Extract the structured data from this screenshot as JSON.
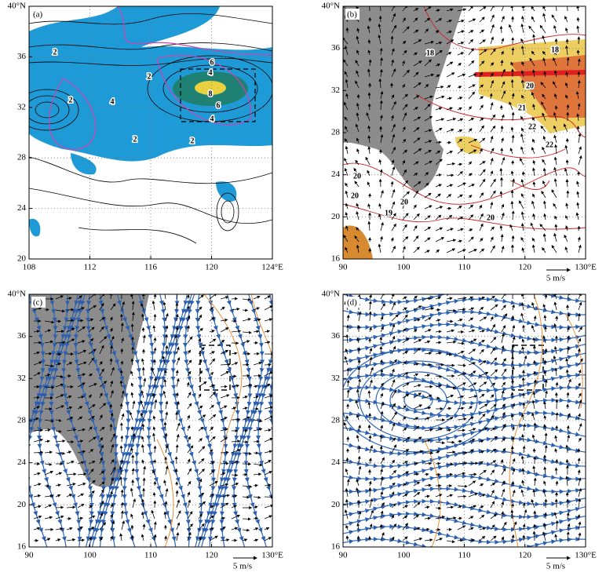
{
  "panels": [
    {
      "label": "(a)",
      "yticks": [
        "40°N",
        "36",
        "32",
        "28",
        "24",
        "20"
      ],
      "xticks": [
        "108",
        "112",
        "116",
        "120",
        "124°E"
      ],
      "contour_labels": [
        "2",
        "2",
        "4",
        "6",
        "8",
        "6",
        "4",
        "2",
        "2",
        "4",
        "2"
      ]
    },
    {
      "label": "(b)",
      "yticks": [
        "40°N",
        "36",
        "32",
        "28",
        "24",
        "20",
        "16"
      ],
      "xticks": [
        "90",
        "100",
        "110",
        "120",
        "130°E"
      ],
      "contour_labels": [
        "20",
        "21",
        "22",
        "18",
        "20",
        "20",
        "19",
        "20",
        "20",
        "22",
        "18"
      ],
      "reference": "5 m/s"
    },
    {
      "label": "(c)",
      "yticks": [
        "40°N",
        "36",
        "32",
        "28",
        "24",
        "20",
        "16"
      ],
      "xticks": [
        "90",
        "100",
        "110",
        "120",
        "130°E"
      ],
      "reference": "5 m/s"
    },
    {
      "label": "(d)",
      "yticks": [
        "40°N",
        "36",
        "32",
        "28",
        "24",
        "20",
        "16"
      ],
      "xticks": [
        "90",
        "100",
        "110",
        "120",
        "130°E"
      ],
      "reference": "5 m/s"
    }
  ]
}
